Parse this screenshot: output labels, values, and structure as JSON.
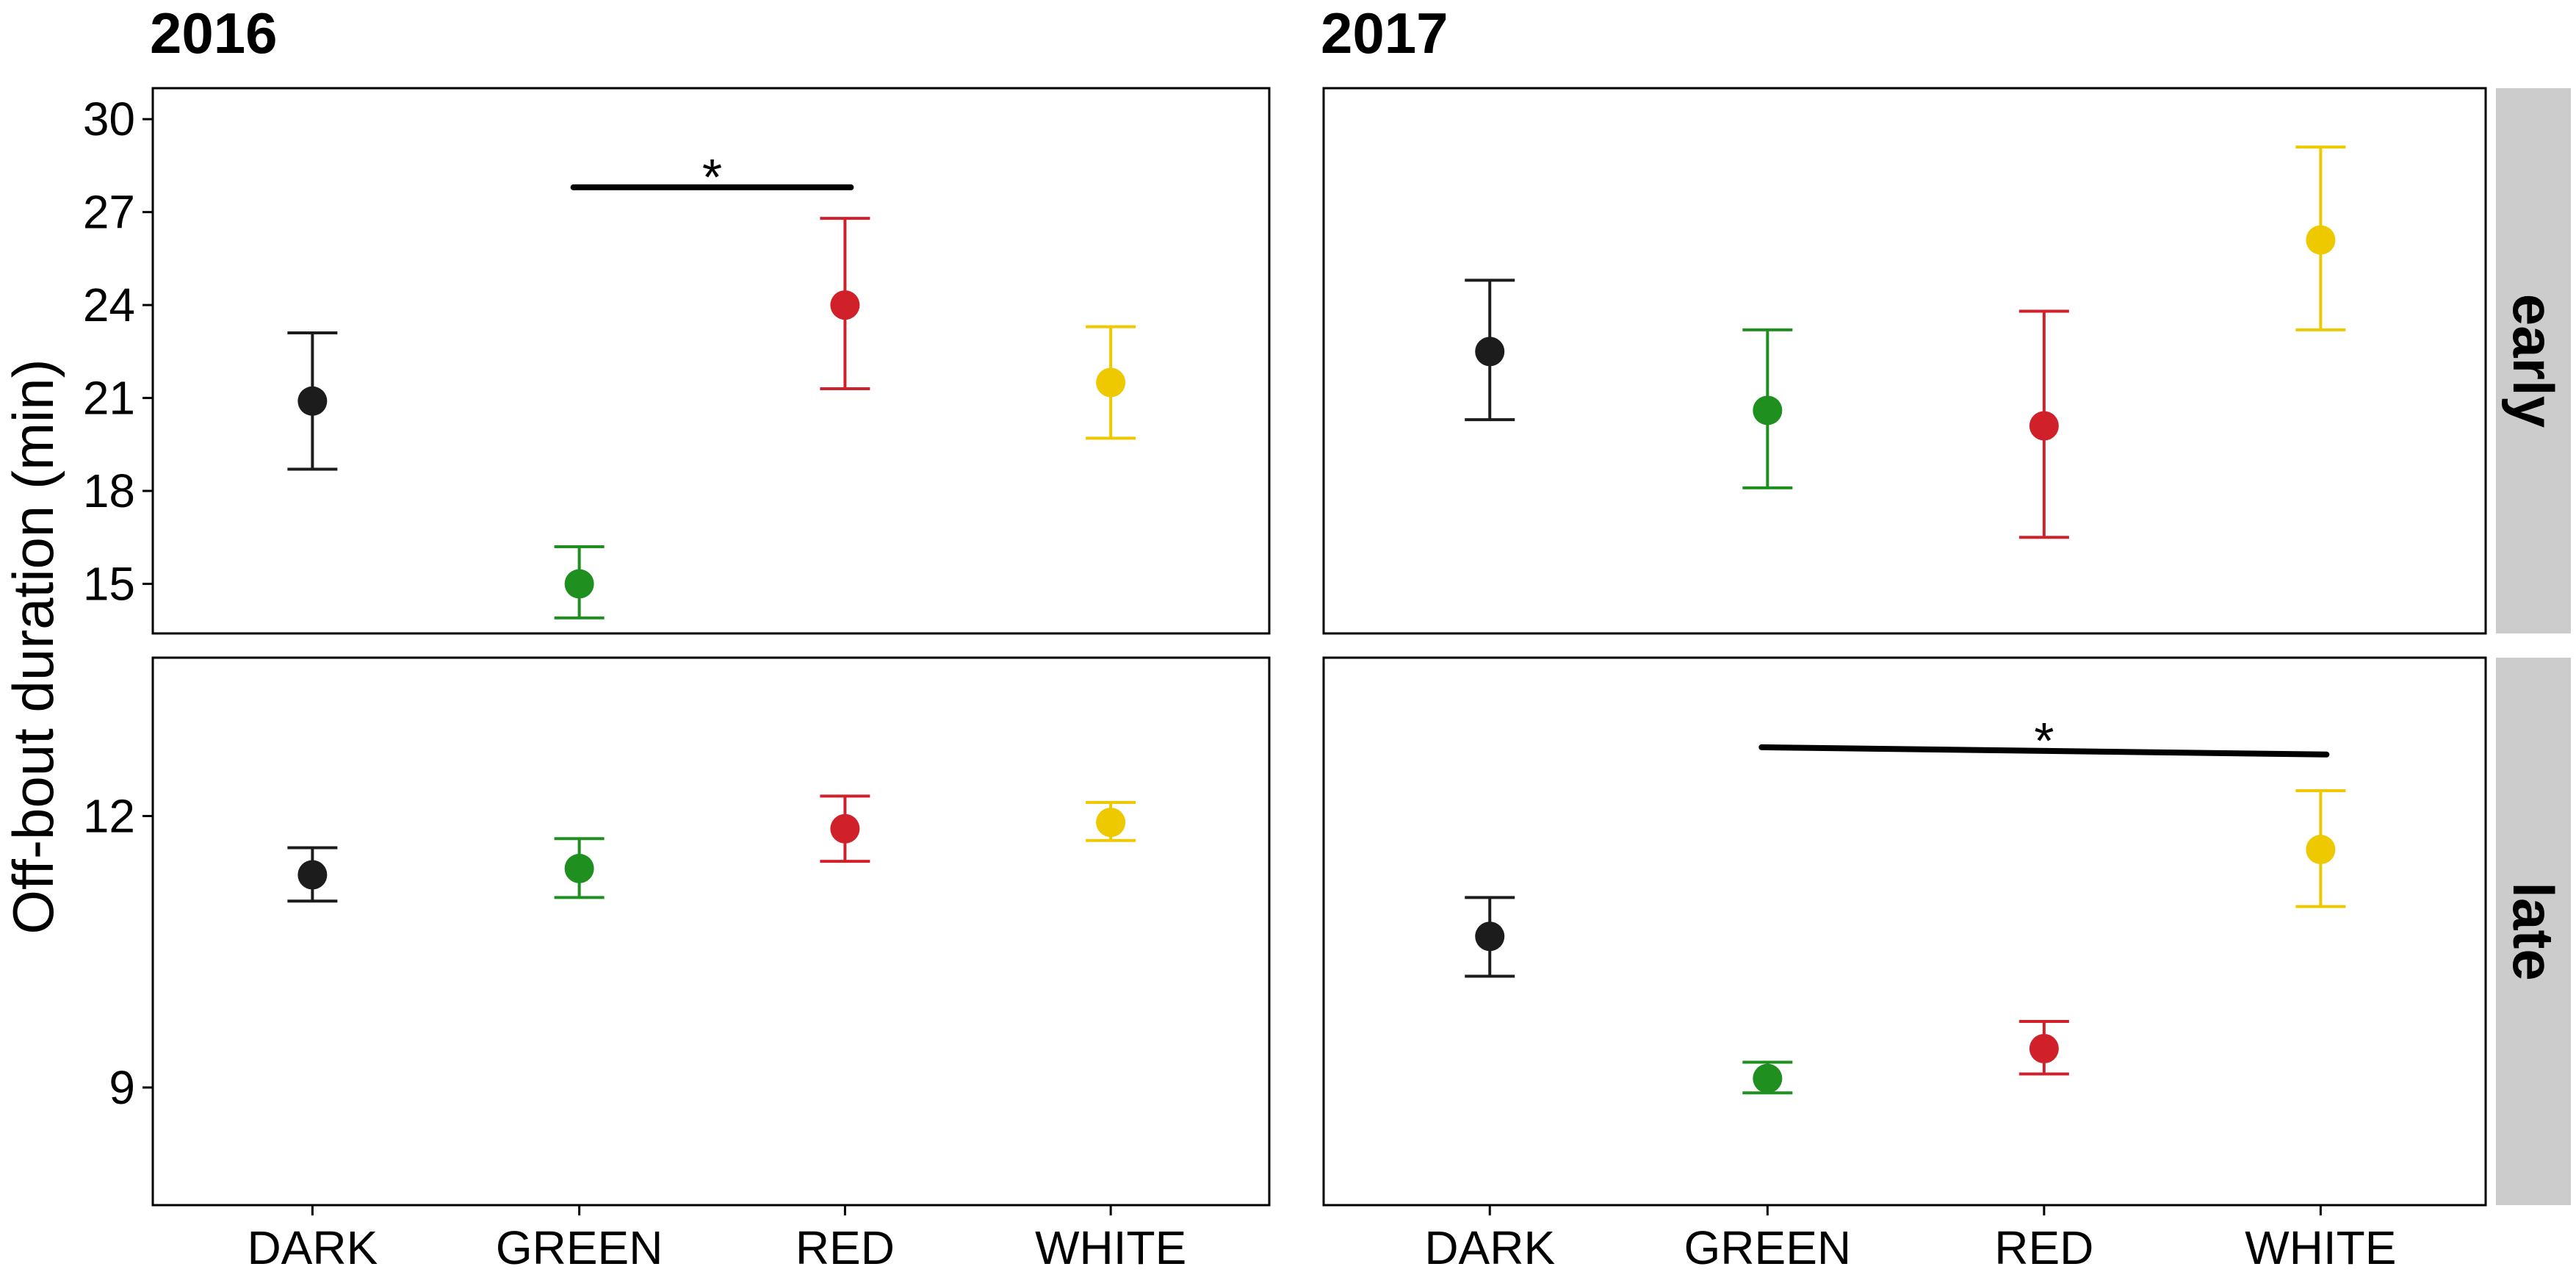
{
  "chart_data": {
    "type": "scatter",
    "ylabel": "Off-bout duration (min)",
    "categories": [
      "DARK",
      "GREEN",
      "RED",
      "WHITE"
    ],
    "colors": {
      "DARK": "#1c1c1c",
      "GREEN": "#1f8f1f",
      "RED": "#d0202a",
      "WHITE": "#eec900"
    },
    "columns": [
      "2016",
      "2017"
    ],
    "rows": [
      "early",
      "late"
    ],
    "rows_axis": [
      {
        "name": "early",
        "ylim": [
          13.4,
          31.0
        ],
        "yticks": [
          15,
          18,
          21,
          24,
          27,
          30
        ],
        "tick_labels": [
          "15",
          "18",
          "21",
          "24",
          "27",
          "30"
        ]
      },
      {
        "name": "late",
        "ylim": [
          7.7,
          13.75
        ],
        "yticks": [
          9,
          12
        ],
        "tick_labels": [
          "9",
          "12"
        ]
      }
    ],
    "panels": [
      {
        "row": "early",
        "column": "2016",
        "points": [
          {
            "category": "DARK",
            "mean": 20.9,
            "lower": 18.7,
            "upper": 23.1
          },
          {
            "category": "GREEN",
            "mean": 15.0,
            "lower": 13.9,
            "upper": 16.2
          },
          {
            "category": "RED",
            "mean": 24.0,
            "lower": 21.3,
            "upper": 26.8
          },
          {
            "category": "WHITE",
            "mean": 21.5,
            "lower": 19.7,
            "upper": 23.3
          }
        ],
        "significance": [
          {
            "from": "GREEN",
            "to": "RED",
            "y": 27.8,
            "label": "*"
          }
        ]
      },
      {
        "row": "early",
        "column": "2017",
        "points": [
          {
            "category": "DARK",
            "mean": 22.5,
            "lower": 20.3,
            "upper": 24.8
          },
          {
            "category": "GREEN",
            "mean": 20.6,
            "lower": 18.1,
            "upper": 23.2
          },
          {
            "category": "RED",
            "mean": 20.1,
            "lower": 16.5,
            "upper": 23.8
          },
          {
            "category": "WHITE",
            "mean": 26.1,
            "lower": 23.2,
            "upper": 29.1
          }
        ],
        "significance": []
      },
      {
        "row": "late",
        "column": "2016",
        "points": [
          {
            "category": "DARK",
            "mean": 11.35,
            "lower": 11.06,
            "upper": 11.65
          },
          {
            "category": "GREEN",
            "mean": 11.42,
            "lower": 11.1,
            "upper": 11.75
          },
          {
            "category": "RED",
            "mean": 11.86,
            "lower": 11.5,
            "upper": 12.22
          },
          {
            "category": "WHITE",
            "mean": 11.93,
            "lower": 11.73,
            "upper": 12.15
          }
        ],
        "significance": []
      },
      {
        "row": "late",
        "column": "2017",
        "points": [
          {
            "category": "DARK",
            "mean": 10.67,
            "lower": 10.23,
            "upper": 11.1
          },
          {
            "category": "GREEN",
            "mean": 9.1,
            "lower": 8.94,
            "upper": 9.28
          },
          {
            "category": "RED",
            "mean": 9.43,
            "lower": 9.15,
            "upper": 9.73
          },
          {
            "category": "WHITE",
            "mean": 11.63,
            "lower": 11.0,
            "upper": 12.28
          }
        ],
        "significance": [
          {
            "from": "GREEN",
            "to": "WHITE",
            "y": 12.76,
            "y_end": 12.68,
            "label": "*"
          }
        ]
      }
    ]
  }
}
